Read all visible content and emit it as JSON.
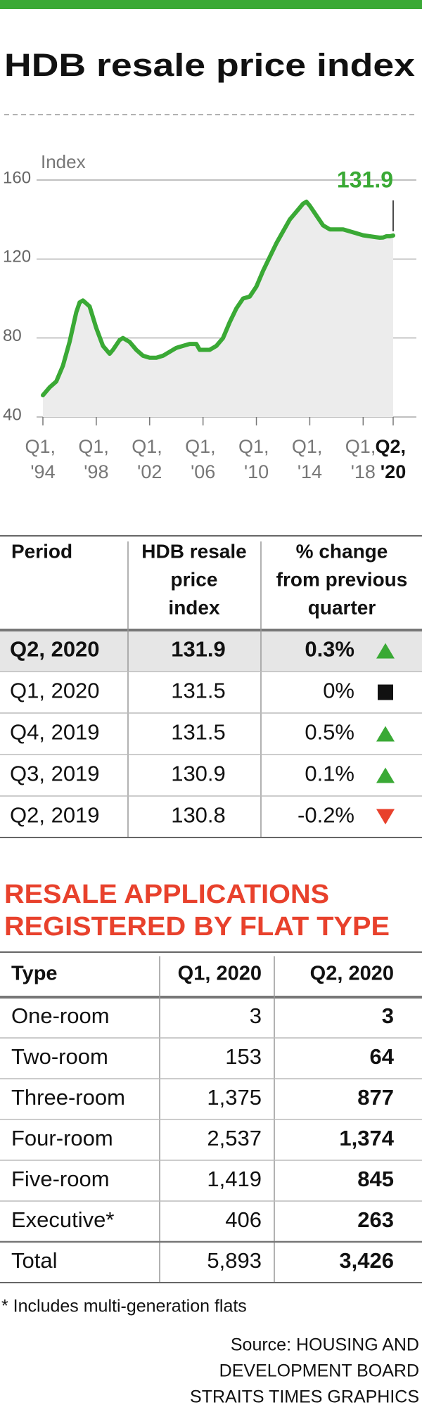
{
  "chart_data": {
    "type": "line",
    "title": "HDB resale price index",
    "y_label": "Index",
    "annotation": "131.9",
    "x": [
      1994,
      1994.5,
      1995,
      1995.5,
      1996,
      1996.5,
      1996.75,
      1997,
      1997.5,
      1998,
      1998.5,
      1999,
      1999.25,
      1999.75,
      2000,
      2000.5,
      2001,
      2001.5,
      2002,
      2002.5,
      2003,
      2003.5,
      2004,
      2004.5,
      2005,
      2005.5,
      2005.75,
      2006.5,
      2007,
      2007.5,
      2008,
      2008.5,
      2009,
      2009.5,
      2010,
      2010.5,
      2011,
      2011.5,
      2012,
      2012.5,
      2013,
      2013.5,
      2013.75,
      2014,
      2014.5,
      2015,
      2015.5,
      2016,
      2016.5,
      2017,
      2017.5,
      2018,
      2018.5,
      2019,
      2019.25,
      2019.5,
      2019.75,
      2020,
      2020.25
    ],
    "series": [
      {
        "name": "HDB resale price index",
        "color": "#3aa935",
        "values": [
          51,
          55,
          58,
          66,
          78,
          93,
          98,
          99,
          96,
          85,
          76,
          72,
          74,
          79,
          80,
          78,
          74,
          71,
          70,
          70,
          71,
          73,
          75,
          76,
          77,
          77,
          74,
          74,
          76,
          80,
          88,
          95,
          100,
          101,
          106,
          114,
          121,
          128,
          134,
          140,
          144,
          148,
          149,
          147,
          142,
          137,
          135,
          135,
          135,
          134,
          133,
          132,
          131.5,
          131,
          130.8,
          130.9,
          131.5,
          131.5,
          131.9
        ]
      }
    ],
    "xlim": [
      1994,
      2020.25
    ],
    "xticks": [
      {
        "value": 1994,
        "label": "Q1, '94"
      },
      {
        "value": 1998,
        "label": "Q1, '98"
      },
      {
        "value": 2002,
        "label": "Q1, '02"
      },
      {
        "value": 2006,
        "label": "Q1, '06"
      },
      {
        "value": 2010,
        "label": "Q1, '10"
      },
      {
        "value": 2014,
        "label": "Q1, '14"
      },
      {
        "value": 2018,
        "label": "Q1, '18"
      },
      {
        "value": 2020.25,
        "label": "Q2, '20"
      }
    ],
    "ylim": [
      40,
      160
    ],
    "yticks": [
      40,
      80,
      120,
      160
    ],
    "grid": true,
    "area_color": "#ececec"
  },
  "price_table": {
    "header": [
      [
        "Period"
      ],
      [
        "HDB resale",
        "price",
        "index"
      ],
      [
        "% change",
        "from previous",
        "quarter"
      ]
    ],
    "rows": [
      {
        "period": "Q2, 2020",
        "index": "131.9",
        "change": "0.3%",
        "trend": "up"
      },
      {
        "period": "Q1, 2020",
        "index": "131.5",
        "change": "0%",
        "trend": "flat"
      },
      {
        "period": "Q4, 2019",
        "index": "131.5",
        "change": "0.5%",
        "trend": "up"
      },
      {
        "period": "Q3, 2019",
        "index": "130.9",
        "change": "0.1%",
        "trend": "up"
      },
      {
        "period": "Q2, 2019",
        "index": "130.8",
        "change": "-0.2%",
        "trend": "down"
      }
    ]
  },
  "applications_table": {
    "title_lines": [
      "RESALE APPLICATIONS",
      "REGISTERED BY FLAT TYPE"
    ],
    "header": [
      "Type",
      "Q1, 2020",
      "Q2, 2020"
    ],
    "rows": [
      [
        "One-room",
        "3",
        "3"
      ],
      [
        "Two-room",
        "153",
        "64"
      ],
      [
        "Three-room",
        "1,375",
        "877"
      ],
      [
        "Four-room",
        "2,537",
        "1,374"
      ],
      [
        "Five-room",
        "1,419",
        "845"
      ],
      [
        "Executive*",
        "406",
        "263"
      ],
      [
        "Total",
        "5,893",
        "3,426"
      ]
    ]
  },
  "footnote": "* Includes multi-generation flats",
  "source_lines": [
    "Source: HOUSING AND",
    "DEVELOPMENT BOARD",
    "STRAITS TIMES GRAPHICS"
  ]
}
